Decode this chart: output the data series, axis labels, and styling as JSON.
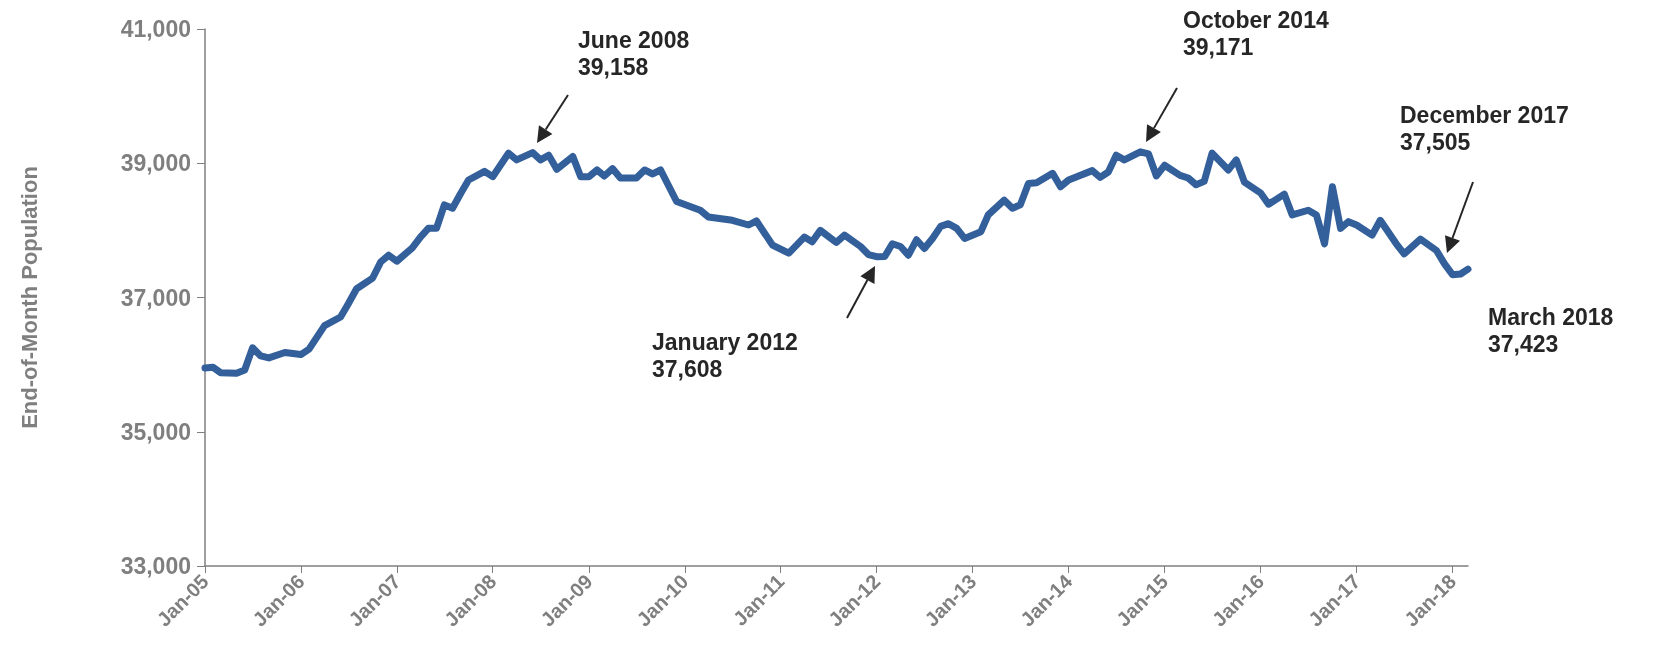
{
  "chart_data": {
    "type": "line",
    "ylabel": "End-of-Month Population",
    "x": [
      "2005-01",
      "2005-02",
      "2005-03",
      "2005-05",
      "2005-06",
      "2005-07",
      "2005-08",
      "2005-09",
      "2005-11",
      "2006-01",
      "2006-02",
      "2006-04",
      "2006-06",
      "2006-07",
      "2006-08",
      "2006-10",
      "2006-11",
      "2006-12",
      "2007-01",
      "2007-03",
      "2007-04",
      "2007-05",
      "2007-06",
      "2007-07",
      "2007-08",
      "2007-09",
      "2007-10",
      "2007-12",
      "2008-01",
      "2008-03",
      "2008-04",
      "2008-06",
      "2008-07",
      "2008-08",
      "2008-09",
      "2008-11",
      "2008-12",
      "2009-01",
      "2009-02",
      "2009-03",
      "2009-04",
      "2009-05",
      "2009-07",
      "2009-08",
      "2009-09",
      "2009-10",
      "2009-12",
      "2010-03",
      "2010-04",
      "2010-07",
      "2010-09",
      "2010-10",
      "2010-12",
      "2011-02",
      "2011-04",
      "2011-05",
      "2011-06",
      "2011-08",
      "2011-09",
      "2011-11",
      "2011-12",
      "2012-01",
      "2012-02",
      "2012-03",
      "2012-04",
      "2012-05",
      "2012-06",
      "2012-07",
      "2012-08",
      "2012-09",
      "2012-10",
      "2012-11",
      "2012-12",
      "2013-02",
      "2013-03",
      "2013-05",
      "2013-06",
      "2013-07",
      "2013-08",
      "2013-09",
      "2013-11",
      "2013-12",
      "2014-01",
      "2014-02",
      "2014-04",
      "2014-05",
      "2014-06",
      "2014-07",
      "2014-08",
      "2014-10",
      "2014-11",
      "2014-12",
      "2015-01",
      "2015-03",
      "2015-04",
      "2015-05",
      "2015-06",
      "2015-07",
      "2015-09",
      "2015-10",
      "2015-11",
      "2016-01",
      "2016-02",
      "2016-04",
      "2016-05",
      "2016-07",
      "2016-08",
      "2016-09",
      "2016-10",
      "2016-11",
      "2016-12",
      "2017-01",
      "2017-03",
      "2017-04",
      "2017-06",
      "2017-07",
      "2017-09",
      "2017-11",
      "2017-12",
      "2018-01",
      "2018-02",
      "2018-03"
    ],
    "series": [
      {
        "color": "#335f9b",
        "values": [
          35950,
          35960,
          35880,
          35870,
          35920,
          36250,
          36130,
          36100,
          36180,
          36150,
          36230,
          36580,
          36710,
          36910,
          37130,
          37290,
          37530,
          37630,
          37540,
          37740,
          37900,
          38030,
          38030,
          38380,
          38330,
          38550,
          38750,
          38880,
          38800,
          39150,
          39050,
          39158,
          39050,
          39120,
          38910,
          39100,
          38800,
          38800,
          38900,
          38810,
          38920,
          38780,
          38780,
          38900,
          38840,
          38900,
          38430,
          38300,
          38200,
          38150,
          38080,
          38140,
          37780,
          37660,
          37900,
          37830,
          38000,
          37820,
          37930,
          37760,
          37640,
          37608,
          37610,
          37800,
          37760,
          37630,
          37860,
          37730,
          37880,
          38060,
          38100,
          38030,
          37880,
          37980,
          38230,
          38450,
          38330,
          38380,
          38700,
          38710,
          38850,
          38650,
          38750,
          38800,
          38890,
          38790,
          38870,
          39120,
          39050,
          39171,
          39140,
          38810,
          38970,
          38820,
          38780,
          38680,
          38730,
          39150,
          38900,
          39050,
          38720,
          38560,
          38390,
          38540,
          38230,
          38300,
          38230,
          37800,
          38650,
          38030,
          38130,
          38080,
          37930,
          38150,
          37800,
          37650,
          37870,
          37700,
          37505,
          37340,
          37350,
          37423
        ]
      }
    ],
    "xlim": [
      "2005-01",
      "2018-03"
    ],
    "xticks": [
      {
        "value": "2005-01",
        "label": "Jan-05"
      },
      {
        "value": "2006-01",
        "label": "Jan-06"
      },
      {
        "value": "2007-01",
        "label": "Jan-07"
      },
      {
        "value": "2008-01",
        "label": "Jan-08"
      },
      {
        "value": "2009-01",
        "label": "Jan-09"
      },
      {
        "value": "2010-01",
        "label": "Jan-10"
      },
      {
        "value": "2011-01",
        "label": "Jan-11"
      },
      {
        "value": "2012-01",
        "label": "Jan-12"
      },
      {
        "value": "2013-01",
        "label": "Jan-13"
      },
      {
        "value": "2014-01",
        "label": "Jan-14"
      },
      {
        "value": "2015-01",
        "label": "Jan-15"
      },
      {
        "value": "2016-01",
        "label": "Jan-16"
      },
      {
        "value": "2017-01",
        "label": "Jan-17"
      },
      {
        "value": "2018-01",
        "label": "Jan-18"
      }
    ],
    "ylim": [
      33000,
      41000
    ],
    "yticks": [
      {
        "value": 33000,
        "label": "33,000"
      },
      {
        "value": 35000,
        "label": "35,000"
      },
      {
        "value": 37000,
        "label": "37,000"
      },
      {
        "value": 39000,
        "label": "39,000"
      },
      {
        "value": 41000,
        "label": "41,000"
      }
    ],
    "grid": false,
    "marker": "none",
    "line_style": "solid",
    "annotations": [
      "June 2008\n39,158",
      "January 2012\n37,608",
      "October 2014\n39,171",
      "December 2017\n37,505",
      {
        "text": "March 2018\n37,423",
        "x": "2018-03",
        "y": 37423
      }
    ]
  }
}
